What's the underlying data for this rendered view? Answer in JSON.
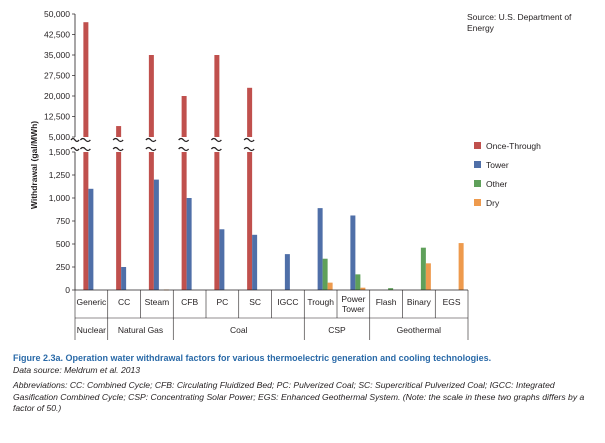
{
  "source_note_line1": "Source: U.S. Department of",
  "source_note_line2": "Energy",
  "caption": {
    "title": "Figure 2.3a. Operation water withdrawal factors for various thermoelectric generation and cooling technologies.",
    "data_source": "Data source: Meldrum et al. 2013",
    "abbreviations": "Abbreviations: CC: Combined Cycle; CFB: Circulating Fluidized Bed; PC: Pulverized Coal; SC: Supercritical Pulverized Coal; IGCC: Integrated Gasification Combined Cycle; CSP: Concentrating Solar Power; EGS: Enhanced Geothermal System. (Note: the scale in these two graphs differs by a factor of 50.)"
  },
  "colors": {
    "once_through": "#c0504d",
    "tower": "#4f6fa8",
    "other": "#5fa05a",
    "dry": "#ee9a4d",
    "axis": "#231f20"
  },
  "chart_data": {
    "type": "bar",
    "ylabel": "Withdrawal (gal/MWh)",
    "broken_axis": true,
    "lower_ylim": [
      0,
      1500
    ],
    "upper_ylim": [
      5000,
      50000
    ],
    "lower_ticks": [
      "0",
      "250",
      "500",
      "750",
      "1,000",
      "1,250",
      "1,500"
    ],
    "upper_ticks": [
      "5,000",
      "12,500",
      "20,000",
      "27,500",
      "35,000",
      "42,500",
      "50,000"
    ],
    "categories": [
      "Generic",
      "CC",
      "Steam",
      "CFB",
      "PC",
      "SC",
      "IGCC",
      "Trough",
      "Power Tower",
      "Flash",
      "Binary",
      "EGS"
    ],
    "groups": [
      {
        "label": "Nuclear",
        "span": 1
      },
      {
        "label": "Natural Gas",
        "span": 2
      },
      {
        "label": "Coal",
        "span": 4
      },
      {
        "label": "CSP",
        "span": 2
      },
      {
        "label": "Geothermal",
        "span": 3
      }
    ],
    "series": [
      {
        "name": "Once-Through",
        "color": "#c0504d",
        "values": [
          47000,
          9000,
          35000,
          20000,
          35000,
          23000,
          0,
          0,
          0,
          0,
          0,
          0
        ]
      },
      {
        "name": "Tower",
        "color": "#4f6fa8",
        "values": [
          1100,
          250,
          1200,
          1000,
          660,
          600,
          390,
          890,
          810,
          0,
          0,
          0
        ]
      },
      {
        "name": "Other",
        "color": "#5fa05a",
        "values": [
          0,
          0,
          0,
          0,
          0,
          0,
          0,
          340,
          170,
          20,
          460,
          0
        ]
      },
      {
        "name": "Dry",
        "color": "#ee9a4d",
        "values": [
          0,
          0,
          5,
          0,
          0,
          0,
          0,
          80,
          25,
          0,
          290,
          510
        ]
      }
    ],
    "legend_position": "right",
    "grid": false
  }
}
